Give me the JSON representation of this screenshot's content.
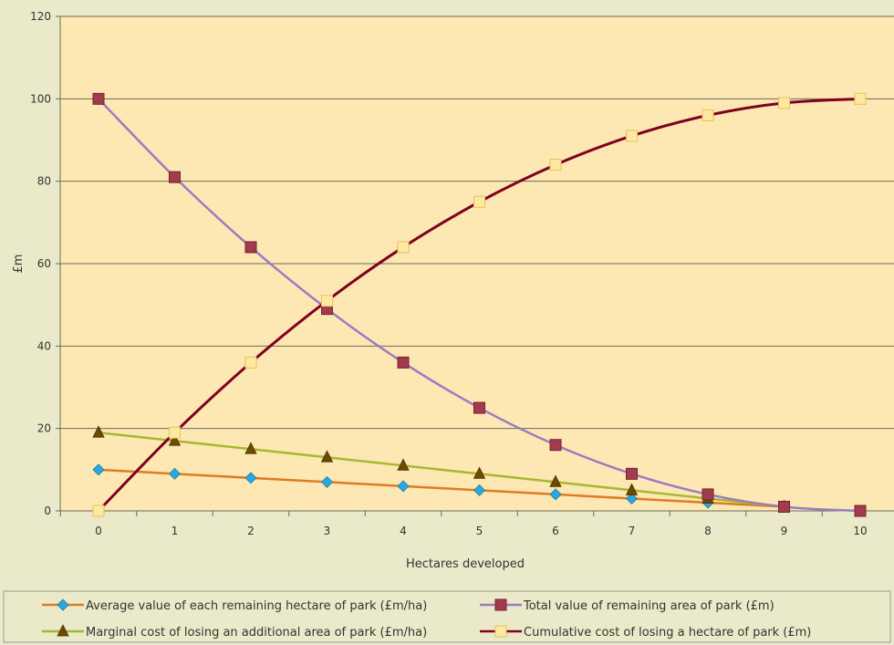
{
  "chart_data": {
    "type": "line",
    "title": "",
    "xlabel": "Hectares developed",
    "ylabel": "£m",
    "x": [
      0,
      1,
      2,
      3,
      4,
      5,
      6,
      7,
      8,
      9,
      10
    ],
    "ylim": [
      0,
      120
    ],
    "yticks": [
      0,
      20,
      40,
      60,
      80,
      100,
      120
    ],
    "grid": "horizontal",
    "legend_position": "bottom",
    "series": [
      {
        "name": "Average value of each remaining hectare of park (£m/ha)",
        "line_color": "#e07b24",
        "marker": "diamond",
        "marker_color": "#2ea6d8",
        "x": [
          0,
          1,
          2,
          3,
          4,
          5,
          6,
          7,
          8,
          9
        ],
        "values": [
          10,
          9,
          8,
          7,
          6,
          5,
          4,
          3,
          2,
          1
        ]
      },
      {
        "name": "Total value of remaining area of park (£m)",
        "line_color": "#9b7cc0",
        "marker": "square",
        "marker_color": "#a03c4c",
        "x": [
          0,
          1,
          2,
          3,
          4,
          5,
          6,
          7,
          8,
          9,
          10
        ],
        "values": [
          100,
          81,
          64,
          49,
          36,
          25,
          16,
          9,
          4,
          1,
          0
        ]
      },
      {
        "name": "Marginal cost of losing an additional area of park (£m/ha)",
        "line_color": "#a8b830",
        "marker": "triangle",
        "marker_color": "#6e4a00",
        "x": [
          0,
          1,
          2,
          3,
          4,
          5,
          6,
          7,
          8,
          9
        ],
        "values": [
          19,
          17,
          15,
          13,
          11,
          9,
          7,
          5,
          3,
          1
        ]
      },
      {
        "name": "Cumulative cost of losing a hectare of park (£m)",
        "line_color": "#800020",
        "marker": "square",
        "marker_color": "#fde9a0",
        "x": [
          0,
          1,
          2,
          3,
          4,
          5,
          6,
          7,
          8,
          9,
          10
        ],
        "values": [
          0,
          19,
          36,
          51,
          64,
          75,
          84,
          91,
          96,
          99,
          100
        ]
      }
    ]
  }
}
